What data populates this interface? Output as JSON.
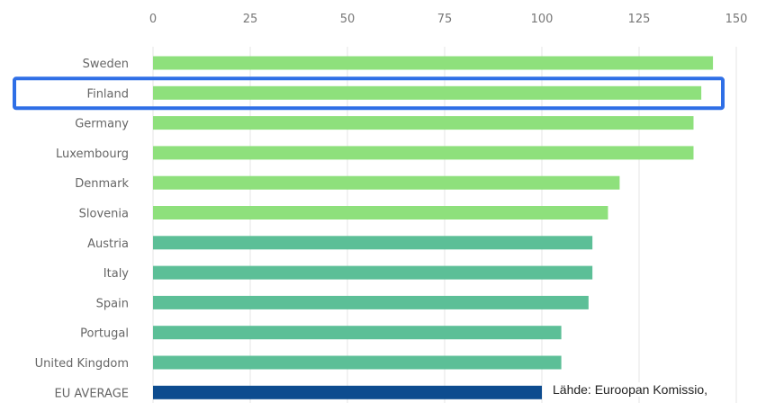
{
  "chart_data": {
    "type": "bar",
    "orientation": "horizontal",
    "categories": [
      "Sweden",
      "Finland",
      "Germany",
      "Luxembourg",
      "Denmark",
      "Slovenia",
      "Austria",
      "Italy",
      "Spain",
      "Portugal",
      "United Kingdom",
      "EU AVERAGE"
    ],
    "values": [
      144,
      141,
      139,
      139,
      120,
      117,
      113,
      113,
      112,
      105,
      105,
      100
    ],
    "bar_colors": [
      "#8ee07c",
      "#8ee07c",
      "#8ee07c",
      "#8ee07c",
      "#8ee07c",
      "#8ee07c",
      "#5cbf97",
      "#5cbf97",
      "#5cbf97",
      "#5cbf97",
      "#5cbf97",
      "#0d4c8f"
    ],
    "xlim": [
      0,
      150
    ],
    "x_ticks": [
      "0",
      "25",
      "50",
      "75",
      "100",
      "125",
      "150"
    ],
    "grid": true,
    "highlighted_category": "Finland",
    "highlight_color": "#2f6fe6"
  },
  "source_note": "Lähde: Euroopan Komissio,"
}
